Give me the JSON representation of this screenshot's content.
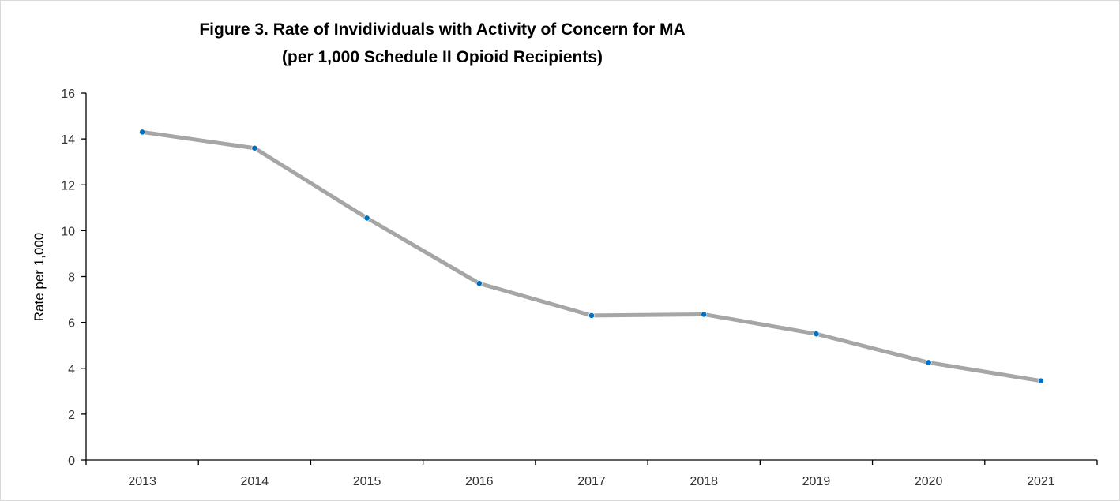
{
  "chart_data": {
    "type": "line",
    "title": "Figure 3. Rate of Invidividuals with Activity of Concern for MA",
    "subtitle": "(per 1,000 Schedule II Opioid Recipients)",
    "xlabel": "",
    "ylabel": "Rate per 1,000",
    "categories": [
      "2013",
      "2014",
      "2015",
      "2016",
      "2017",
      "2018",
      "2019",
      "2020",
      "2021"
    ],
    "series": [
      {
        "values": [
          14.3,
          13.6,
          10.55,
          7.7,
          6.3,
          6.35,
          5.5,
          4.25,
          3.45
        ],
        "line_color": "#a6a6a6",
        "marker_color": "#0070c0"
      }
    ],
    "ylim": [
      0,
      16
    ],
    "yticks": [
      "0",
      "2",
      "4",
      "6",
      "8",
      "10",
      "12",
      "14",
      "16"
    ],
    "grid": false,
    "legend": "none"
  }
}
